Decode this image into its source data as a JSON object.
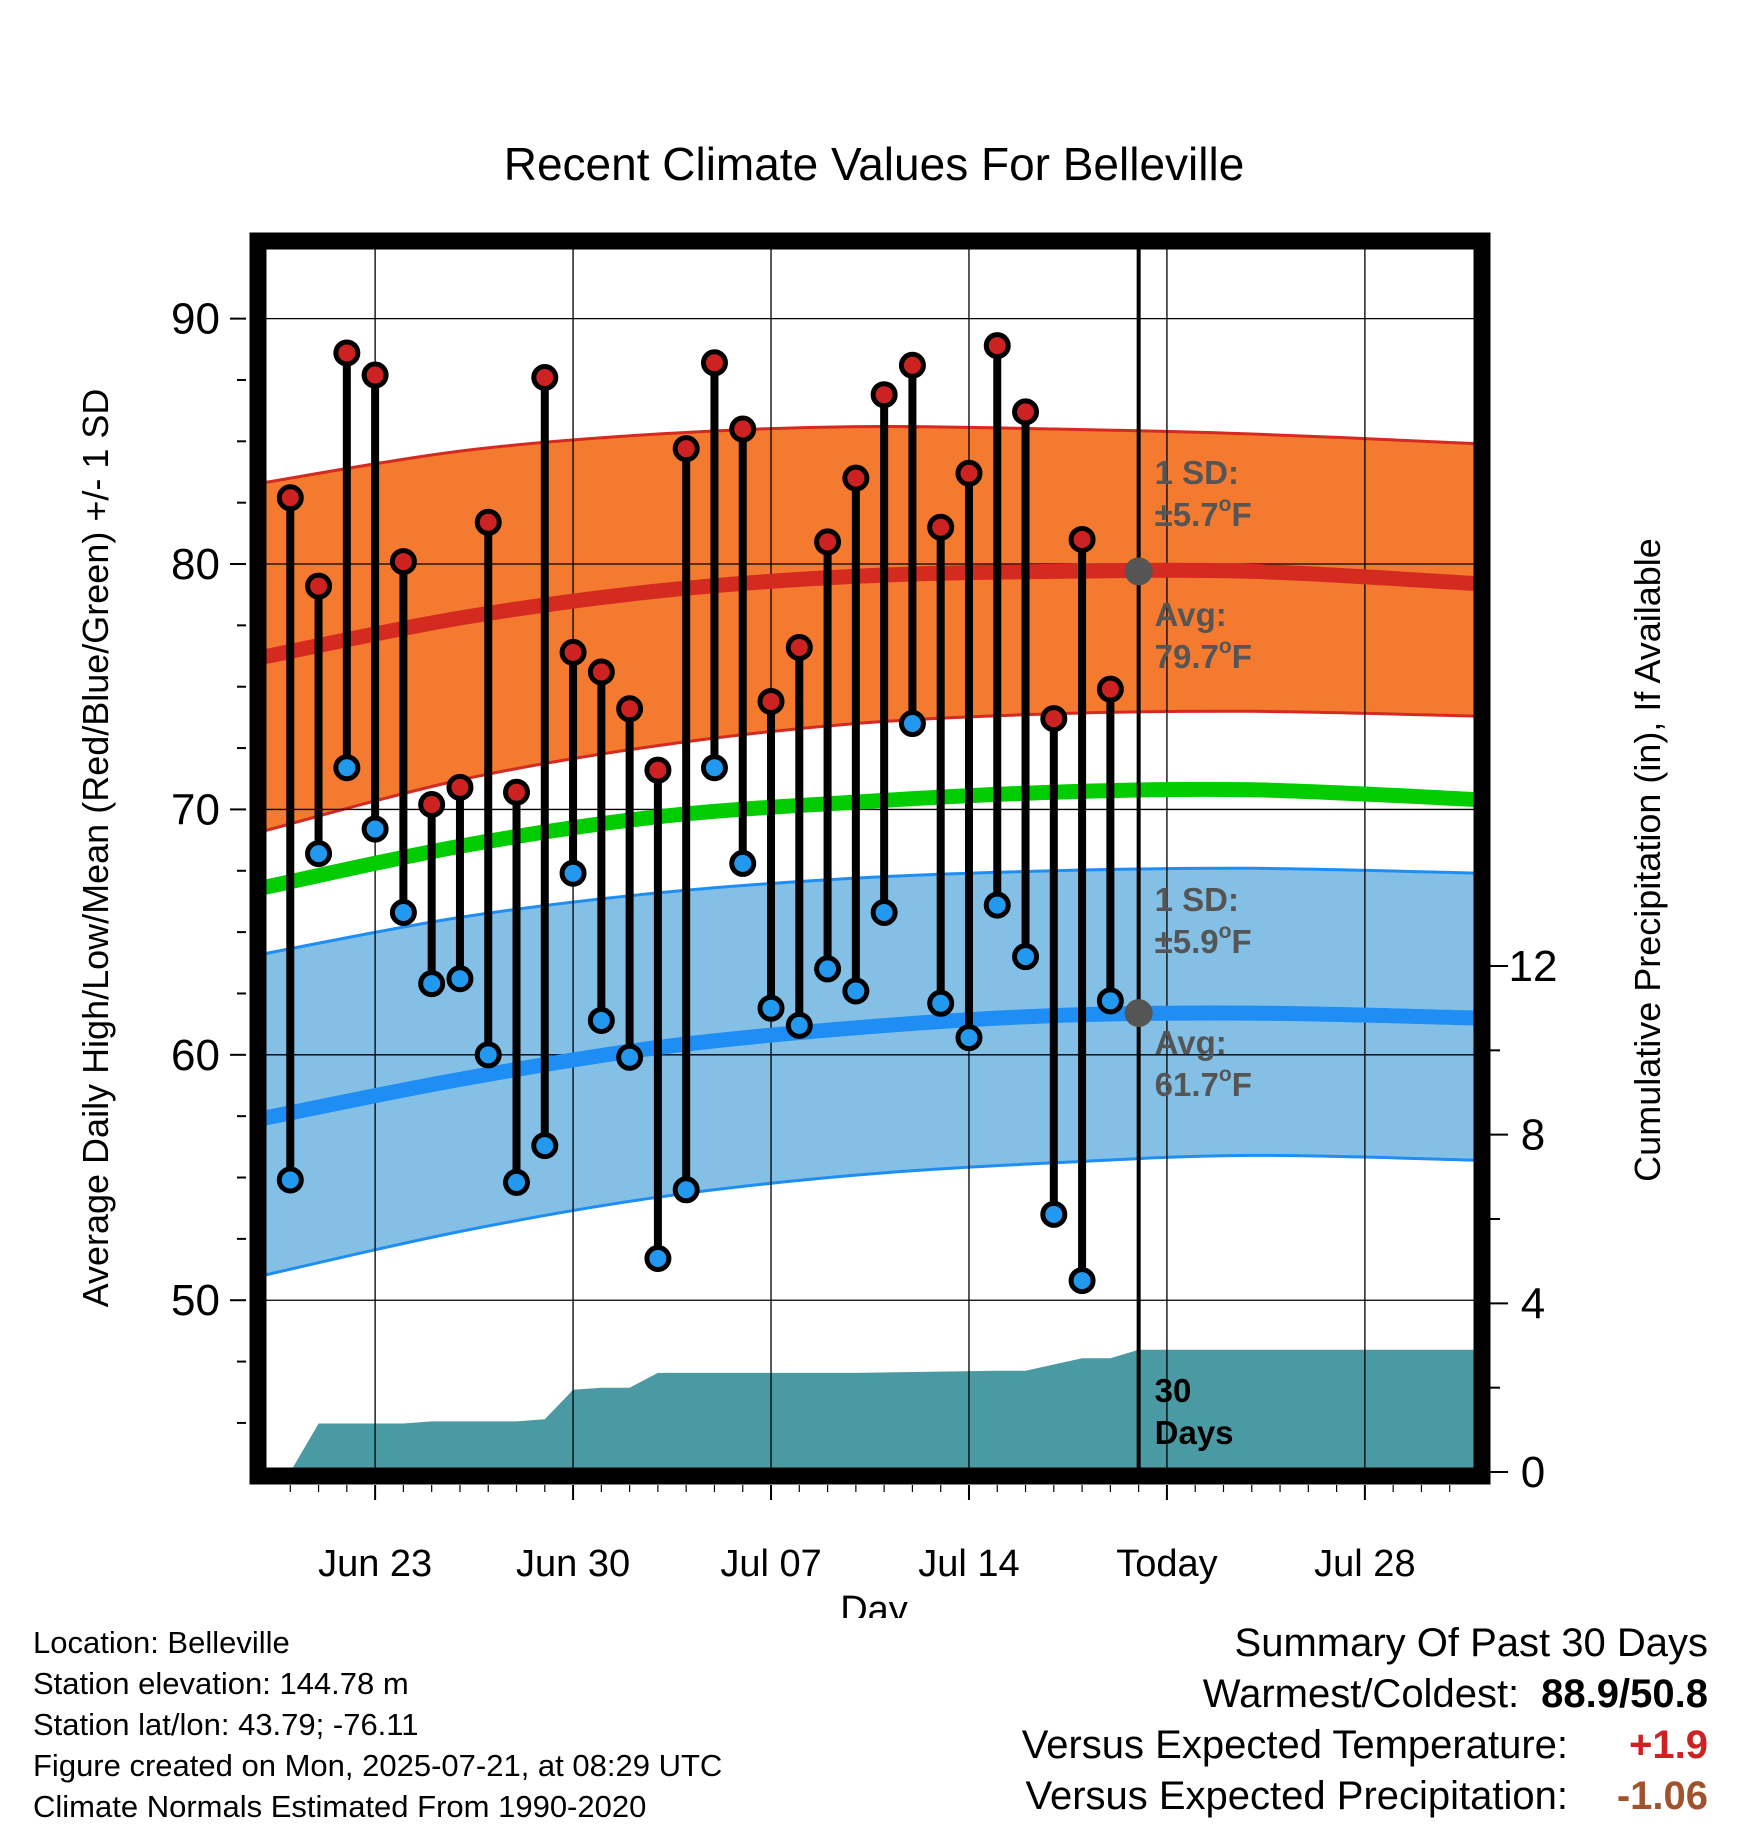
{
  "chart_data": {
    "type": "line",
    "title": "Recent Climate Values For Belleville",
    "xlabel": "Day",
    "ylabel": "Average Daily High/Low/Mean (Red/Blue/Green) +/- 1 SD",
    "ylabel_right": "Cumulative Precipitation (in), If Available",
    "x_ticks": [
      "Jun 23",
      "Jun 30",
      "Jul 07",
      "Jul 14",
      "Today",
      "Jul 28"
    ],
    "x_range": [
      "2025-06-19",
      "2025-08-01"
    ],
    "ylim": [
      43,
      93
    ],
    "y_ticks": [
      50,
      60,
      70,
      80,
      90
    ],
    "y2lim": [
      0,
      29.1
    ],
    "y2_ticks": [
      0,
      4,
      8,
      12
    ],
    "grid": true,
    "dates": [
      "2025-06-20",
      "2025-06-21",
      "2025-06-22",
      "2025-06-23",
      "2025-06-24",
      "2025-06-25",
      "2025-06-26",
      "2025-06-27",
      "2025-06-28",
      "2025-06-29",
      "2025-06-30",
      "2025-07-01",
      "2025-07-02",
      "2025-07-03",
      "2025-07-04",
      "2025-07-05",
      "2025-07-06",
      "2025-07-07",
      "2025-07-08",
      "2025-07-09",
      "2025-07-10",
      "2025-07-11",
      "2025-07-12",
      "2025-07-13",
      "2025-07-14",
      "2025-07-15",
      "2025-07-16",
      "2025-07-17",
      "2025-07-18",
      "2025-07-19",
      "2025-07-20"
    ],
    "daily_high": [
      82.7,
      79.1,
      88.6,
      87.7,
      80.1,
      70.2,
      70.9,
      81.7,
      70.7,
      87.6,
      76.4,
      75.6,
      74.1,
      71.6,
      84.7,
      88.2,
      85.5,
      74.4,
      76.6,
      80.9,
      83.5,
      86.9,
      88.1,
      81.5,
      83.7,
      88.9,
      86.2,
      73.7,
      81.0,
      74.9,
      79.7
    ],
    "daily_low": [
      54.9,
      68.2,
      71.7,
      69.2,
      65.8,
      62.9,
      63.1,
      60.0,
      54.8,
      56.3,
      67.4,
      61.4,
      59.9,
      51.7,
      54.5,
      71.7,
      67.8,
      61.9,
      61.2,
      63.5,
      62.6,
      65.8,
      73.5,
      62.1,
      60.7,
      66.1,
      64.0,
      53.5,
      50.8,
      62.2,
      61.7
    ],
    "normals_x": [
      "2025-06-19",
      "2025-06-26",
      "2025-07-03",
      "2025-07-10",
      "2025-07-17",
      "2025-07-24",
      "2025-08-01"
    ],
    "normal_high": [
      76.2,
      77.8,
      78.9,
      79.5,
      79.7,
      79.7,
      79.2
    ],
    "normal_high_sd_upper": [
      83.3,
      84.6,
      85.3,
      85.6,
      85.5,
      85.3,
      84.9
    ],
    "normal_high_sd_lower": [
      69.1,
      71.2,
      72.6,
      73.5,
      73.9,
      74.0,
      73.8
    ],
    "normal_mean": [
      66.8,
      68.5,
      69.7,
      70.3,
      70.7,
      70.8,
      70.4
    ],
    "normal_low": [
      57.4,
      59.0,
      60.3,
      61.1,
      61.6,
      61.7,
      61.5
    ],
    "normal_low_sd_upper": [
      64.1,
      65.6,
      66.6,
      67.2,
      67.5,
      67.6,
      67.4
    ],
    "normal_low_sd_lower": [
      51.0,
      52.8,
      54.2,
      55.1,
      55.6,
      55.9,
      55.7
    ],
    "precip_x": [
      "2025-06-20",
      "2025-06-21",
      "2025-06-24",
      "2025-06-25",
      "2025-06-28",
      "2025-06-29",
      "2025-06-30",
      "2025-07-01",
      "2025-07-02",
      "2025-07-03",
      "2025-07-10",
      "2025-07-15",
      "2025-07-16",
      "2025-07-18",
      "2025-07-19",
      "2025-07-20",
      "2025-08-01"
    ],
    "precip_cum": [
      0.0,
      1.15,
      1.15,
      1.2,
      1.2,
      1.25,
      1.95,
      2.0,
      2.0,
      2.35,
      2.35,
      2.4,
      2.4,
      2.7,
      2.7,
      2.9,
      2.9
    ],
    "colors": {
      "high_band": "#f47a30",
      "high_line": "#d42a20",
      "mean_line": "#00cc00",
      "low_band": "#84c0e6",
      "low_line": "#1e8ef5",
      "precip_fill": "#4a9aa4",
      "high_dot": "#cc2222",
      "low_dot": "#2299ee",
      "annotation": "#555555"
    },
    "annotations": {
      "high_sd": [
        "1 SD:",
        "±5.7",
        "F"
      ],
      "high_avg": [
        "Avg:",
        "79.7",
        "F"
      ],
      "low_sd": [
        "1 SD:",
        "±5.9",
        "F"
      ],
      "low_avg": [
        "Avg:",
        "61.7",
        "F"
      ],
      "degree": "o",
      "period": [
        "30",
        "Days"
      ]
    }
  },
  "info": {
    "location": "Location: Belleville",
    "elevation": "Station elevation: 144.78 m",
    "latlon": "Station lat/lon: 43.79; -76.11",
    "created": "Figure created on Mon, 2025-07-21, at 08:29 UTC",
    "normals": "Climate Normals Estimated From 1990-2020"
  },
  "summary": {
    "title": "Summary Of Past 30 Days",
    "warm_label": "Warmest/Coldest:",
    "warm_value": "88.9/50.8",
    "temp_label": "Versus Expected Temperature:",
    "temp_value": "+1.9",
    "temp_color": "#cc2222",
    "precip_label": "Versus Expected Precipitation:",
    "precip_value": "-1.06",
    "precip_color": "#a0522d"
  }
}
